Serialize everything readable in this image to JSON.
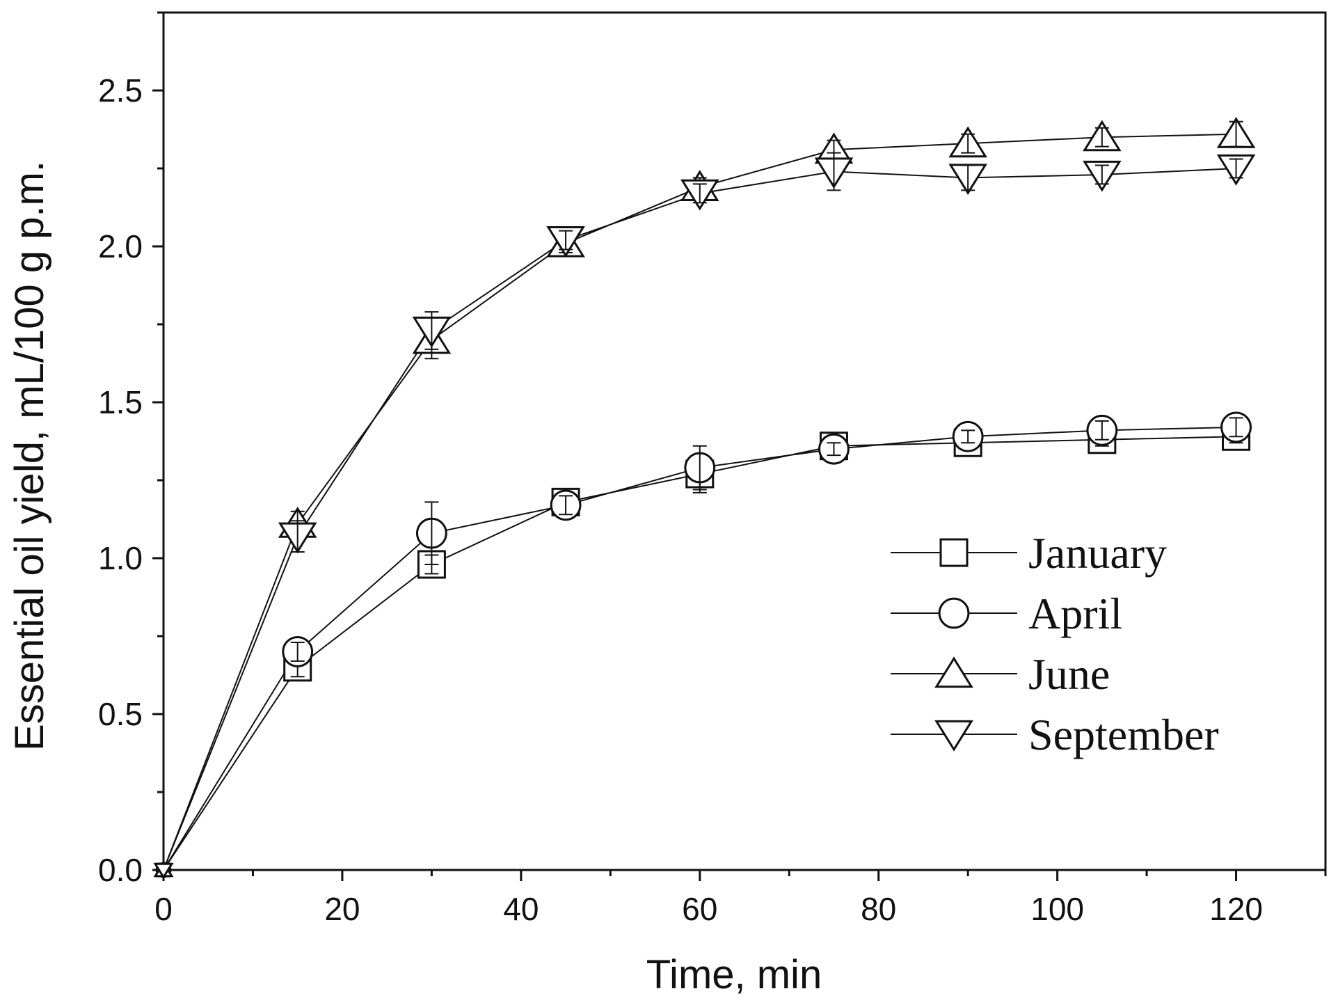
{
  "chart_data": {
    "type": "line",
    "xlabel": "Time, min",
    "ylabel": "Essential oil yield, mL/100 g p.m.",
    "xlim": [
      0,
      130
    ],
    "ylim": [
      0,
      2.75
    ],
    "xticks": [
      0,
      20,
      40,
      60,
      80,
      100,
      120
    ],
    "xtick_labels": [
      "0",
      "20",
      "40",
      "60",
      "80",
      "100",
      "120"
    ],
    "xminor": [
      10,
      30,
      50,
      70,
      90,
      110,
      130
    ],
    "yticks": [
      0,
      0.5,
      1.0,
      1.5,
      2.0,
      2.5
    ],
    "ytick_labels": [
      "0.0",
      "0.5",
      "1.0",
      "1.5",
      "2.0",
      "2.5"
    ],
    "yminor": [
      0.25,
      0.75,
      1.25,
      1.75,
      2.25,
      2.75
    ],
    "grid": false,
    "legend_position": "bottom-right",
    "x": [
      0,
      15,
      30,
      45,
      60,
      75,
      90,
      105,
      120
    ],
    "series": [
      {
        "name": "January",
        "marker": "square",
        "values": [
          0,
          0.65,
          0.98,
          1.18,
          1.27,
          1.36,
          1.37,
          1.38,
          1.39
        ],
        "errors": [
          0,
          0.03,
          0.03,
          0.03,
          0.06,
          0.02,
          0.02,
          0.02,
          0.02
        ]
      },
      {
        "name": "April",
        "marker": "circle",
        "values": [
          0,
          0.7,
          1.08,
          1.17,
          1.29,
          1.35,
          1.39,
          1.41,
          1.42
        ],
        "errors": [
          0,
          0.03,
          0.1,
          0.03,
          0.07,
          0.02,
          0.02,
          0.03,
          0.03
        ]
      },
      {
        "name": "June",
        "marker": "triangle-up",
        "values": [
          0,
          1.11,
          1.7,
          2.01,
          2.19,
          2.31,
          2.33,
          2.35,
          2.36
        ],
        "errors": [
          0,
          0.04,
          0.06,
          0.03,
          0.03,
          0.03,
          0.03,
          0.03,
          0.04
        ]
      },
      {
        "name": "September",
        "marker": "triangle-down",
        "values": [
          0,
          1.07,
          1.73,
          2.02,
          2.17,
          2.24,
          2.22,
          2.23,
          2.25
        ],
        "errors": [
          0,
          0.05,
          0.06,
          0.03,
          0.03,
          0.06,
          0.04,
          0.03,
          0.03
        ]
      }
    ]
  }
}
